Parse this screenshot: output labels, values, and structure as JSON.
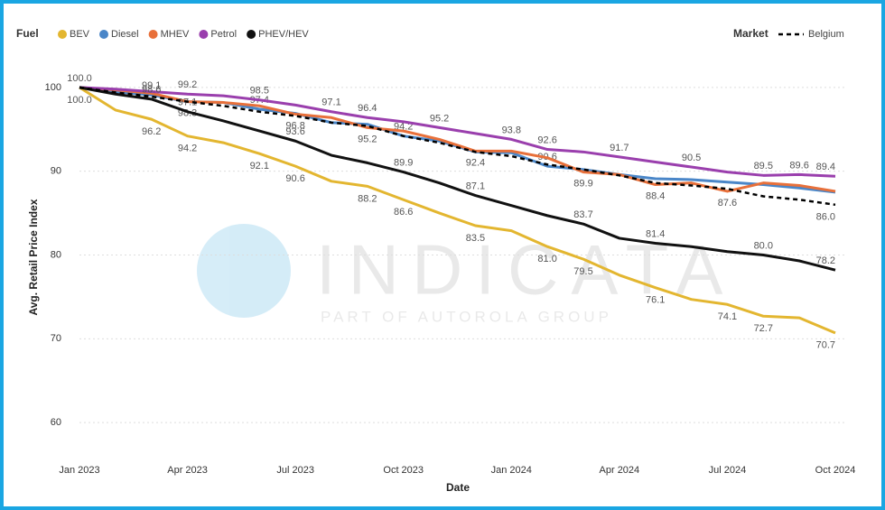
{
  "chart_data": {
    "type": "line",
    "legend_title": "Fuel",
    "market_legend_title": "Market",
    "watermark": "INDICATA",
    "watermark_subtitle": "PART OF AUTOROLA GROUP",
    "y_label": "Avg. Retail Price Index",
    "x_label": "Date",
    "categories": [
      "Jan 2023",
      null,
      null,
      "Apr 2023",
      null,
      null,
      "Jul 2023",
      null,
      null,
      "Oct 2023",
      null,
      null,
      "Jan 2024",
      null,
      null,
      "Apr 2024",
      null,
      null,
      "Jul 2024",
      null,
      null,
      "Oct 2024"
    ],
    "ylim": [
      57,
      103
    ],
    "yticks": [
      60,
      70,
      80,
      90,
      100
    ],
    "grid": true,
    "series": [
      {
        "name": "BEV",
        "color": "#e3b630",
        "values": [
          100,
          97.3,
          96.2,
          94.2,
          93.4,
          92.1,
          90.6,
          88.8,
          88.2,
          86.6,
          85.0,
          83.5,
          82.9,
          81.0,
          79.5,
          77.6,
          76.1,
          74.7,
          74.1,
          72.7,
          72.5,
          70.7
        ],
        "value_labels": [
          "100.0",
          null,
          "96.2",
          "94.2",
          null,
          "92.1",
          "90.6",
          null,
          "88.2",
          "86.6",
          null,
          "83.5",
          null,
          "81.0",
          "79.5",
          null,
          "76.1",
          null,
          "74.1",
          "72.7",
          null,
          "70.7"
        ]
      },
      {
        "name": "Diesel",
        "color": "#4a86c8",
        "values": [
          100,
          99.5,
          99.1,
          98.3,
          98.2,
          97.4,
          96.9,
          95.8,
          95.6,
          94.2,
          93.6,
          92.3,
          92.2,
          90.6,
          90.2,
          89.6,
          89.1,
          89.0,
          88.7,
          88.4,
          88.0,
          87.5
        ],
        "value_labels": [
          null,
          null,
          "99.1",
          null,
          null,
          "97.4",
          null,
          null,
          null,
          "94.2",
          null,
          null,
          null,
          "90.6",
          null,
          null,
          null,
          null,
          null,
          null,
          null,
          null
        ]
      },
      {
        "name": "MHEV",
        "color": "#e8703a",
        "values": [
          100,
          99.7,
          99.3,
          98.3,
          98.2,
          97.8,
          96.8,
          96.4,
          95.2,
          94.8,
          93.8,
          92.4,
          92.4,
          91.6,
          89.9,
          89.6,
          88.4,
          88.6,
          87.6,
          88.6,
          88.3,
          87.6
        ],
        "value_labels": [
          null,
          null,
          null,
          "98.3",
          null,
          null,
          "96.8",
          null,
          "95.2",
          null,
          null,
          "92.4",
          null,
          null,
          "89.9",
          null,
          "88.4",
          null,
          "87.6",
          null,
          null,
          null
        ]
      },
      {
        "name": "Petrol",
        "color": "#9a3fad",
        "values": [
          100,
          99.8,
          99.5,
          99.2,
          99.0,
          98.5,
          97.9,
          97.1,
          96.4,
          95.9,
          95.2,
          94.5,
          93.8,
          92.6,
          92.3,
          91.7,
          91.1,
          90.5,
          89.9,
          89.5,
          89.6,
          89.4
        ],
        "value_labels": [
          "100.0",
          null,
          null,
          "99.2",
          null,
          "98.5",
          null,
          "97.1",
          "96.4",
          null,
          "95.2",
          null,
          "93.8",
          "92.6",
          null,
          "91.7",
          null,
          "90.5",
          null,
          "89.5",
          "89.6",
          "89.4"
        ]
      },
      {
        "name": "PHEV/HEV",
        "color": "#111111",
        "values": [
          100,
          99.2,
          98.6,
          97.1,
          96.0,
          94.8,
          93.6,
          91.9,
          91.0,
          89.9,
          88.6,
          87.1,
          85.9,
          84.7,
          83.7,
          82.0,
          81.4,
          81.0,
          80.4,
          80.0,
          79.3,
          78.2
        ],
        "value_labels": [
          null,
          null,
          "98.6",
          "97.1",
          null,
          null,
          "93.6",
          null,
          null,
          "89.9",
          null,
          "87.1",
          null,
          null,
          "83.7",
          null,
          "81.4",
          null,
          null,
          "80.0",
          null,
          "78.2"
        ]
      }
    ],
    "market_series": [
      {
        "name": "Belgium",
        "color": "#000000",
        "values": [
          100,
          99.4,
          98.9,
          98.3,
          97.8,
          97.1,
          96.6,
          95.8,
          95.4,
          94.2,
          93.4,
          92.3,
          91.8,
          90.8,
          90.2,
          89.5,
          88.6,
          88.3,
          87.9,
          87.0,
          86.6,
          86.0
        ],
        "value_labels": [
          null,
          null,
          null,
          null,
          null,
          null,
          null,
          null,
          null,
          null,
          null,
          null,
          null,
          null,
          null,
          null,
          null,
          null,
          null,
          null,
          null,
          "86.0"
        ]
      }
    ]
  }
}
